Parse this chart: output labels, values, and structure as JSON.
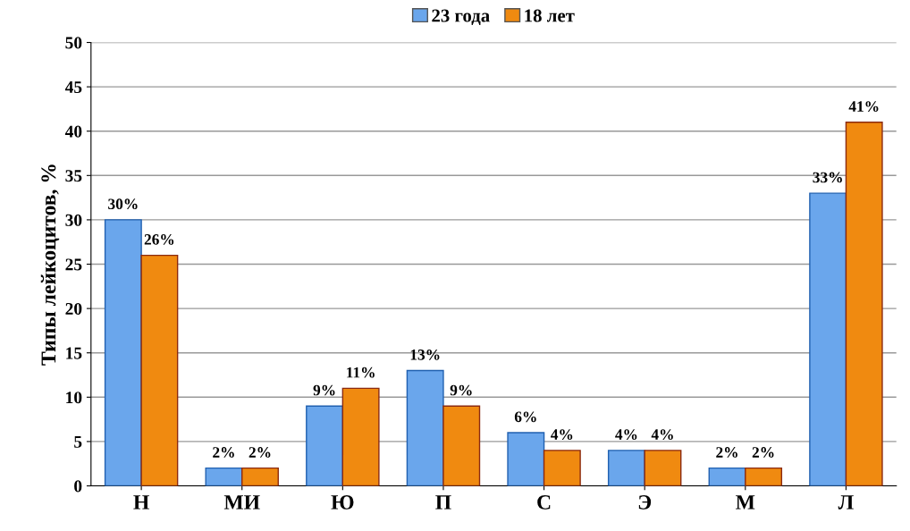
{
  "chart_data": {
    "type": "bar",
    "ylabel": "Типы лейкоцитов, %",
    "categories": [
      "Н",
      "МИ",
      "Ю",
      "П",
      "С",
      "Э",
      "М",
      "Л"
    ],
    "series": [
      {
        "name": "23 года",
        "color": "#6aa6ec",
        "values": [
          30,
          2,
          9,
          13,
          6,
          4,
          2,
          33
        ],
        "value_labels": [
          "30%",
          "2%",
          "9%",
          "13%",
          "6%",
          "4%",
          "2%",
          "33%"
        ]
      },
      {
        "name": "18 лет",
        "color": "#f08a10",
        "values": [
          26,
          2,
          11,
          9,
          4,
          4,
          2,
          41
        ],
        "value_labels": [
          "26%",
          "2%",
          "11%",
          "9%",
          "4%",
          "4%",
          "2%",
          "41%"
        ]
      }
    ],
    "ylim": [
      0,
      50
    ],
    "yticks": [
      0,
      5,
      10,
      15,
      20,
      25,
      30,
      35,
      40,
      45,
      50
    ],
    "grid": "y",
    "legend": "top"
  }
}
